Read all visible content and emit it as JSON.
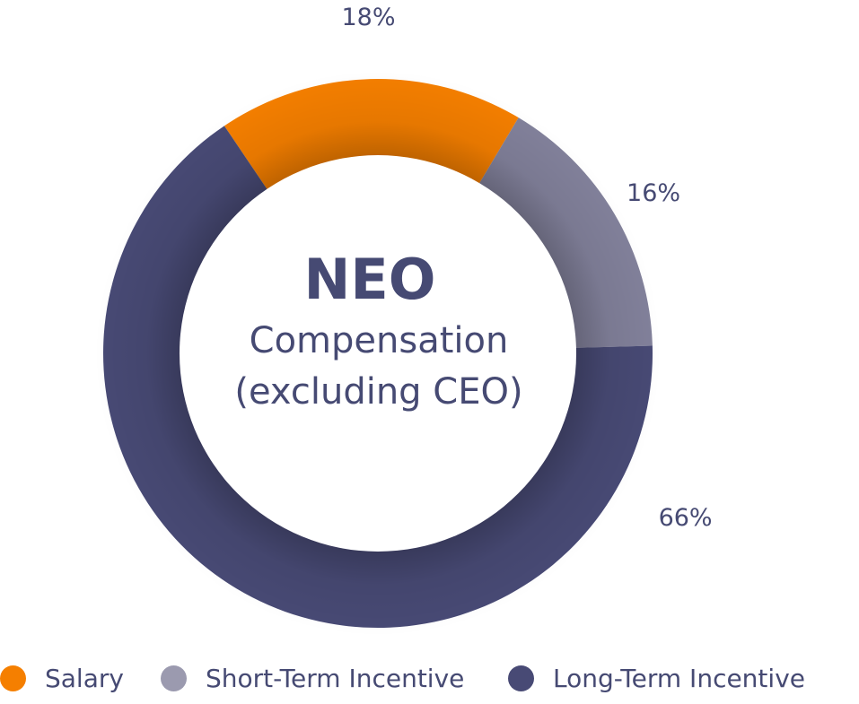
{
  "chart_data": {
    "type": "pie",
    "style": "donut",
    "center_text": [
      "NEO",
      "Compensation",
      "(excluding CEO)"
    ],
    "categories": [
      "Salary",
      "Short-Term Incentive",
      "Long-Term Incentive"
    ],
    "values": [
      18,
      16,
      66
    ],
    "value_labels": [
      "18%",
      "16%",
      "66%"
    ],
    "colors": [
      "#f57f00",
      "#82819b",
      "#484a75"
    ],
    "legend_position": "bottom"
  },
  "legend": {
    "items": [
      {
        "label": "Salary",
        "color": "#f57f00"
      },
      {
        "label": "Short-Term Incentive",
        "color": "#9b9aaf"
      },
      {
        "label": "Long-Term Incentive",
        "color": "#484a75"
      }
    ]
  }
}
